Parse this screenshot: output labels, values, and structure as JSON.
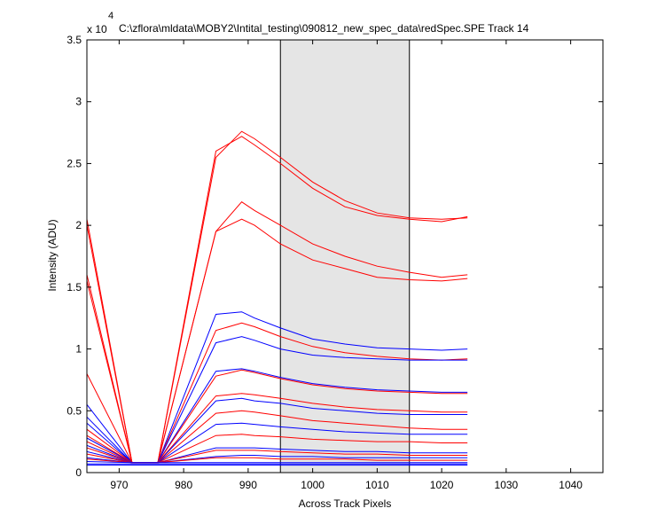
{
  "chart_data": {
    "type": "line",
    "title": "C:\\zflora\\mldata\\MOBY2\\Intital_testing\\090812_new_spec_data\\redSpec.SPE   Track 14",
    "xlabel": "Across Track Pixels",
    "ylabel": "Intensity (ADU)",
    "y_multiplier_label": "x 10",
    "y_multiplier_exponent": "4",
    "xlim": [
      965,
      1045
    ],
    "ylim": [
      0,
      3.5
    ],
    "x_ticks": [
      970,
      980,
      990,
      1000,
      1010,
      1020,
      1030,
      1040
    ],
    "y_ticks": [
      0,
      0.5,
      1,
      1.5,
      2,
      2.5,
      3,
      3.5
    ],
    "x_tick_labels": [
      "970",
      "980",
      "990",
      "1000",
      "1010",
      "1020",
      "1030",
      "1040"
    ],
    "y_tick_labels": [
      "0",
      "0.5",
      "1",
      "1.5",
      "2",
      "2.5",
      "3",
      "3.5"
    ],
    "highlight_region": {
      "x": [
        995,
        1015
      ],
      "color": "#e5e5e5"
    },
    "grid": false,
    "series_colors": {
      "red": "#ff0000",
      "blue": "#0000ff"
    },
    "series": [
      {
        "color": "red",
        "points": [
          [
            965,
            2.05
          ],
          [
            972,
            0.08
          ],
          [
            976,
            0.08
          ],
          [
            985,
            2.55
          ],
          [
            989,
            2.76
          ],
          [
            991,
            2.7
          ],
          [
            995,
            2.55
          ],
          [
            1000,
            2.35
          ],
          [
            1005,
            2.2
          ],
          [
            1010,
            2.1
          ],
          [
            1015,
            2.06
          ],
          [
            1020,
            2.05
          ],
          [
            1024,
            2.06
          ]
        ]
      },
      {
        "color": "red",
        "points": [
          [
            965,
            2.0
          ],
          [
            972,
            0.08
          ],
          [
            976,
            0.08
          ],
          [
            985,
            2.6
          ],
          [
            989,
            2.72
          ],
          [
            991,
            2.65
          ],
          [
            995,
            2.5
          ],
          [
            1000,
            2.3
          ],
          [
            1005,
            2.15
          ],
          [
            1010,
            2.08
          ],
          [
            1015,
            2.05
          ],
          [
            1020,
            2.03
          ],
          [
            1024,
            2.07
          ]
        ]
      },
      {
        "color": "red",
        "points": [
          [
            965,
            1.6
          ],
          [
            972,
            0.08
          ],
          [
            976,
            0.08
          ],
          [
            985,
            1.95
          ],
          [
            989,
            2.19
          ],
          [
            991,
            2.12
          ],
          [
            995,
            2.0
          ],
          [
            1000,
            1.85
          ],
          [
            1005,
            1.75
          ],
          [
            1010,
            1.67
          ],
          [
            1015,
            1.62
          ],
          [
            1020,
            1.58
          ],
          [
            1024,
            1.6
          ]
        ]
      },
      {
        "color": "red",
        "points": [
          [
            965,
            1.55
          ],
          [
            972,
            0.08
          ],
          [
            976,
            0.08
          ],
          [
            985,
            1.95
          ],
          [
            989,
            2.05
          ],
          [
            991,
            2.0
          ],
          [
            995,
            1.85
          ],
          [
            1000,
            1.72
          ],
          [
            1005,
            1.65
          ],
          [
            1010,
            1.58
          ],
          [
            1015,
            1.56
          ],
          [
            1020,
            1.55
          ],
          [
            1024,
            1.57
          ]
        ]
      },
      {
        "color": "blue",
        "points": [
          [
            965,
            0.55
          ],
          [
            972,
            0.08
          ],
          [
            976,
            0.08
          ],
          [
            985,
            1.28
          ],
          [
            989,
            1.3
          ],
          [
            991,
            1.25
          ],
          [
            995,
            1.17
          ],
          [
            1000,
            1.08
          ],
          [
            1005,
            1.04
          ],
          [
            1010,
            1.01
          ],
          [
            1015,
            1.0
          ],
          [
            1020,
            0.99
          ],
          [
            1024,
            1.0
          ]
        ]
      },
      {
        "color": "red",
        "points": [
          [
            965,
            0.8
          ],
          [
            972,
            0.08
          ],
          [
            976,
            0.08
          ],
          [
            985,
            1.15
          ],
          [
            989,
            1.21
          ],
          [
            991,
            1.18
          ],
          [
            995,
            1.1
          ],
          [
            1000,
            1.02
          ],
          [
            1005,
            0.97
          ],
          [
            1010,
            0.94
          ],
          [
            1015,
            0.92
          ],
          [
            1020,
            0.91
          ],
          [
            1024,
            0.92
          ]
        ]
      },
      {
        "color": "blue",
        "points": [
          [
            965,
            0.45
          ],
          [
            972,
            0.08
          ],
          [
            976,
            0.08
          ],
          [
            985,
            1.05
          ],
          [
            989,
            1.1
          ],
          [
            991,
            1.07
          ],
          [
            995,
            1.0
          ],
          [
            1000,
            0.95
          ],
          [
            1005,
            0.93
          ],
          [
            1010,
            0.92
          ],
          [
            1015,
            0.91
          ],
          [
            1020,
            0.91
          ],
          [
            1024,
            0.91
          ]
        ]
      },
      {
        "color": "blue",
        "points": [
          [
            965,
            0.4
          ],
          [
            972,
            0.08
          ],
          [
            976,
            0.08
          ],
          [
            985,
            0.82
          ],
          [
            989,
            0.84
          ],
          [
            991,
            0.82
          ],
          [
            995,
            0.77
          ],
          [
            1000,
            0.72
          ],
          [
            1005,
            0.69
          ],
          [
            1010,
            0.67
          ],
          [
            1015,
            0.66
          ],
          [
            1020,
            0.65
          ],
          [
            1024,
            0.65
          ]
        ]
      },
      {
        "color": "red",
        "points": [
          [
            965,
            0.35
          ],
          [
            972,
            0.08
          ],
          [
            976,
            0.08
          ],
          [
            985,
            0.78
          ],
          [
            989,
            0.83
          ],
          [
            991,
            0.81
          ],
          [
            995,
            0.76
          ],
          [
            1000,
            0.71
          ],
          [
            1005,
            0.68
          ],
          [
            1010,
            0.66
          ],
          [
            1015,
            0.65
          ],
          [
            1020,
            0.64
          ],
          [
            1024,
            0.64
          ]
        ]
      },
      {
        "color": "red",
        "points": [
          [
            965,
            0.3
          ],
          [
            972,
            0.08
          ],
          [
            976,
            0.08
          ],
          [
            985,
            0.62
          ],
          [
            989,
            0.64
          ],
          [
            991,
            0.63
          ],
          [
            995,
            0.6
          ],
          [
            1000,
            0.56
          ],
          [
            1005,
            0.53
          ],
          [
            1010,
            0.51
          ],
          [
            1015,
            0.5
          ],
          [
            1020,
            0.49
          ],
          [
            1024,
            0.49
          ]
        ]
      },
      {
        "color": "blue",
        "points": [
          [
            965,
            0.28
          ],
          [
            972,
            0.08
          ],
          [
            976,
            0.08
          ],
          [
            985,
            0.58
          ],
          [
            989,
            0.6
          ],
          [
            991,
            0.58
          ],
          [
            995,
            0.56
          ],
          [
            1000,
            0.52
          ],
          [
            1005,
            0.5
          ],
          [
            1010,
            0.48
          ],
          [
            1015,
            0.47
          ],
          [
            1020,
            0.47
          ],
          [
            1024,
            0.47
          ]
        ]
      },
      {
        "color": "red",
        "points": [
          [
            965,
            0.25
          ],
          [
            972,
            0.08
          ],
          [
            976,
            0.08
          ],
          [
            985,
            0.48
          ],
          [
            989,
            0.5
          ],
          [
            991,
            0.49
          ],
          [
            995,
            0.46
          ],
          [
            1000,
            0.42
          ],
          [
            1005,
            0.4
          ],
          [
            1010,
            0.38
          ],
          [
            1015,
            0.36
          ],
          [
            1020,
            0.35
          ],
          [
            1024,
            0.35
          ]
        ]
      },
      {
        "color": "blue",
        "points": [
          [
            965,
            0.22
          ],
          [
            972,
            0.08
          ],
          [
            976,
            0.08
          ],
          [
            985,
            0.39
          ],
          [
            989,
            0.4
          ],
          [
            991,
            0.39
          ],
          [
            995,
            0.37
          ],
          [
            1000,
            0.35
          ],
          [
            1005,
            0.33
          ],
          [
            1010,
            0.32
          ],
          [
            1015,
            0.31
          ],
          [
            1020,
            0.31
          ],
          [
            1024,
            0.31
          ]
        ]
      },
      {
        "color": "red",
        "points": [
          [
            965,
            0.2
          ],
          [
            972,
            0.08
          ],
          [
            976,
            0.08
          ],
          [
            985,
            0.3
          ],
          [
            989,
            0.31
          ],
          [
            991,
            0.3
          ],
          [
            995,
            0.29
          ],
          [
            1000,
            0.27
          ],
          [
            1005,
            0.26
          ],
          [
            1010,
            0.25
          ],
          [
            1015,
            0.25
          ],
          [
            1020,
            0.24
          ],
          [
            1024,
            0.24
          ]
        ]
      },
      {
        "color": "blue",
        "points": [
          [
            965,
            0.17
          ],
          [
            972,
            0.08
          ],
          [
            976,
            0.08
          ],
          [
            985,
            0.2
          ],
          [
            989,
            0.2
          ],
          [
            991,
            0.2
          ],
          [
            995,
            0.19
          ],
          [
            1000,
            0.18
          ],
          [
            1005,
            0.17
          ],
          [
            1010,
            0.17
          ],
          [
            1015,
            0.16
          ],
          [
            1020,
            0.16
          ],
          [
            1024,
            0.16
          ]
        ]
      },
      {
        "color": "red",
        "points": [
          [
            965,
            0.15
          ],
          [
            972,
            0.08
          ],
          [
            976,
            0.08
          ],
          [
            985,
            0.18
          ],
          [
            989,
            0.18
          ],
          [
            991,
            0.18
          ],
          [
            995,
            0.17
          ],
          [
            1000,
            0.16
          ],
          [
            1005,
            0.15
          ],
          [
            1010,
            0.15
          ],
          [
            1015,
            0.14
          ],
          [
            1020,
            0.14
          ],
          [
            1024,
            0.14
          ]
        ]
      },
      {
        "color": "blue",
        "points": [
          [
            965,
            0.12
          ],
          [
            972,
            0.08
          ],
          [
            976,
            0.08
          ],
          [
            985,
            0.13
          ],
          [
            989,
            0.14
          ],
          [
            991,
            0.14
          ],
          [
            995,
            0.13
          ],
          [
            1000,
            0.13
          ],
          [
            1005,
            0.12
          ],
          [
            1010,
            0.12
          ],
          [
            1015,
            0.12
          ],
          [
            1020,
            0.12
          ],
          [
            1024,
            0.12
          ]
        ]
      },
      {
        "color": "red",
        "points": [
          [
            965,
            0.11
          ],
          [
            972,
            0.08
          ],
          [
            976,
            0.08
          ],
          [
            985,
            0.12
          ],
          [
            989,
            0.12
          ],
          [
            991,
            0.12
          ],
          [
            995,
            0.11
          ],
          [
            1000,
            0.11
          ],
          [
            1005,
            0.11
          ],
          [
            1010,
            0.1
          ],
          [
            1015,
            0.1
          ],
          [
            1020,
            0.1
          ],
          [
            1024,
            0.1
          ]
        ]
      },
      {
        "color": "blue",
        "points": [
          [
            965,
            0.09
          ],
          [
            972,
            0.08
          ],
          [
            976,
            0.08
          ],
          [
            985,
            0.08
          ],
          [
            989,
            0.08
          ],
          [
            991,
            0.08
          ],
          [
            995,
            0.08
          ],
          [
            1000,
            0.08
          ],
          [
            1005,
            0.08
          ],
          [
            1010,
            0.08
          ],
          [
            1015,
            0.08
          ],
          [
            1020,
            0.08
          ],
          [
            1024,
            0.08
          ]
        ]
      },
      {
        "color": "blue",
        "points": [
          [
            965,
            0.07
          ],
          [
            972,
            0.07
          ],
          [
            976,
            0.07
          ],
          [
            985,
            0.07
          ],
          [
            989,
            0.07
          ],
          [
            991,
            0.07
          ],
          [
            995,
            0.07
          ],
          [
            1000,
            0.07
          ],
          [
            1005,
            0.07
          ],
          [
            1010,
            0.07
          ],
          [
            1015,
            0.07
          ],
          [
            1020,
            0.07
          ],
          [
            1024,
            0.07
          ]
        ]
      },
      {
        "color": "blue",
        "points": [
          [
            965,
            0.06
          ],
          [
            972,
            0.06
          ],
          [
            976,
            0.06
          ],
          [
            985,
            0.06
          ],
          [
            989,
            0.06
          ],
          [
            991,
            0.06
          ],
          [
            995,
            0.06
          ],
          [
            1000,
            0.06
          ],
          [
            1005,
            0.06
          ],
          [
            1010,
            0.06
          ],
          [
            1015,
            0.06
          ],
          [
            1020,
            0.06
          ],
          [
            1024,
            0.06
          ]
        ]
      }
    ]
  }
}
